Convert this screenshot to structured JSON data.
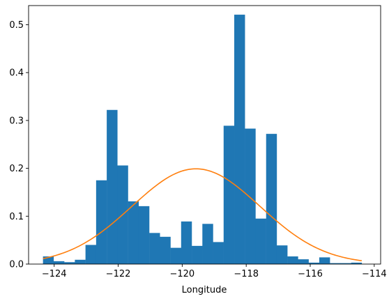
{
  "chart_data": {
    "type": "bar",
    "xlabel": "Longitude",
    "ylabel": "",
    "title": "",
    "xlim": [
      -124.8,
      -113.8
    ],
    "ylim": [
      0,
      0.54
    ],
    "x_ticks": [
      -124,
      -122,
      -120,
      -118,
      -116,
      -114
    ],
    "x_tick_labels": [
      "−124",
      "−122",
      "−120",
      "−118",
      "−116",
      "−114"
    ],
    "y_ticks": [
      0.0,
      0.1,
      0.2,
      0.3,
      0.4,
      0.5
    ],
    "y_tick_labels": [
      "0.0",
      "0.1",
      "0.2",
      "0.3",
      "0.4",
      "0.5"
    ],
    "grid": false,
    "bins": {
      "start": -124.35,
      "width": 0.332,
      "values": [
        0.016,
        0.006,
        0.004,
        0.009,
        0.04,
        0.175,
        0.322,
        0.206,
        0.131,
        0.121,
        0.065,
        0.057,
        0.034,
        0.089,
        0.038,
        0.084,
        0.046,
        0.289,
        0.521,
        0.283,
        0.095,
        0.272,
        0.039,
        0.016,
        0.01,
        0.003,
        0.014,
        0.002,
        0.002,
        0.003
      ]
    },
    "series": [
      {
        "type": "histogram",
        "color": "#1f77b4"
      },
      {
        "type": "line",
        "color": "#ff7f0e",
        "distribution": "normal",
        "mean": -119.57,
        "std": 2.0,
        "peak": 0.199
      }
    ]
  }
}
